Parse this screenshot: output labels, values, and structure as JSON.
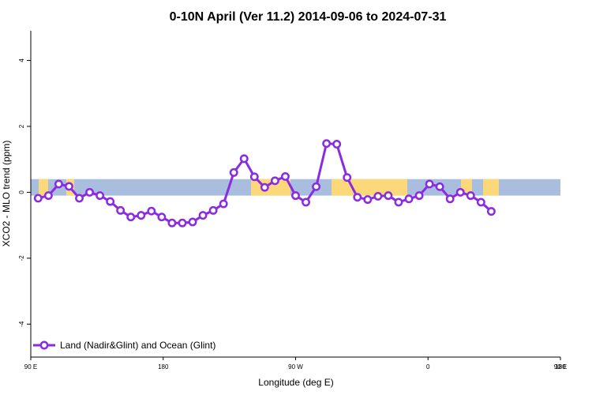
{
  "colors": {
    "series": "#8a2be2",
    "ocean_band": "#a9bedf",
    "land_band": "#fbd97a",
    "axis": "#000000"
  },
  "chart_data": {
    "type": "line",
    "title": "0-10N April (Ver 11.2)   2014-09-06 to 2024-07-31",
    "xlabel": "Longitude (deg E)",
    "ylabel": "XCO2 - MLO trend (ppm)",
    "xlim": [
      90,
      450
    ],
    "ylim": [
      -5,
      4.9
    ],
    "x_ticks": [
      {
        "value": 90,
        "label": "90 E"
      },
      {
        "value": 180,
        "label": "180"
      },
      {
        "value": 270,
        "label": "90 W"
      },
      {
        "value": 360,
        "label": "0"
      },
      {
        "value": 450,
        "label": "90 E"
      },
      {
        "value": 540,
        "label": "180"
      }
    ],
    "y_ticks": [
      {
        "value": -4,
        "label": "-4"
      },
      {
        "value": -2,
        "label": "-2"
      },
      {
        "value": 0,
        "label": "0"
      },
      {
        "value": 2,
        "label": "2"
      },
      {
        "value": 4,
        "label": "4"
      }
    ],
    "grid": false,
    "legend_position": "bottom-left",
    "band": {
      "ymin": -0.1,
      "ymax": 0.4,
      "legend_shown": false
    },
    "series": [
      {
        "name": "Land (Nadir&Glint) and Ocean (Glint)",
        "color": "#8a2be2",
        "marker": "open-circle",
        "points": [
          [
            95,
            -0.18
          ],
          [
            102,
            -0.1
          ],
          [
            109,
            0.25
          ],
          [
            116,
            0.18
          ],
          [
            123,
            -0.18
          ],
          [
            130,
            0.0
          ],
          [
            137,
            -0.1
          ],
          [
            144,
            -0.28
          ],
          [
            151,
            -0.55
          ],
          [
            158,
            -0.75
          ],
          [
            165,
            -0.7
          ],
          [
            172,
            -0.57
          ],
          [
            179,
            -0.75
          ],
          [
            186,
            -0.93
          ],
          [
            193,
            -0.93
          ],
          [
            200,
            -0.9
          ],
          [
            207,
            -0.7
          ],
          [
            214,
            -0.55
          ],
          [
            221,
            -0.35
          ],
          [
            228,
            0.6
          ],
          [
            235,
            1.02
          ],
          [
            242,
            0.47
          ],
          [
            249,
            0.15
          ],
          [
            256,
            0.35
          ],
          [
            263,
            0.48
          ],
          [
            270,
            -0.1
          ],
          [
            277,
            -0.3
          ],
          [
            284,
            0.17
          ],
          [
            291,
            1.48
          ],
          [
            298,
            1.46
          ],
          [
            305,
            0.45
          ],
          [
            312,
            -0.15
          ],
          [
            319,
            -0.22
          ],
          [
            326,
            -0.12
          ],
          [
            333,
            -0.1
          ],
          [
            340,
            -0.3
          ],
          [
            347,
            -0.2
          ],
          [
            354,
            -0.1
          ],
          [
            361,
            0.25
          ],
          [
            368,
            0.17
          ],
          [
            375,
            -0.2
          ],
          [
            382,
            0.0
          ],
          [
            389,
            -0.1
          ],
          [
            396,
            -0.3
          ],
          [
            403,
            -0.58
          ]
        ]
      }
    ]
  }
}
